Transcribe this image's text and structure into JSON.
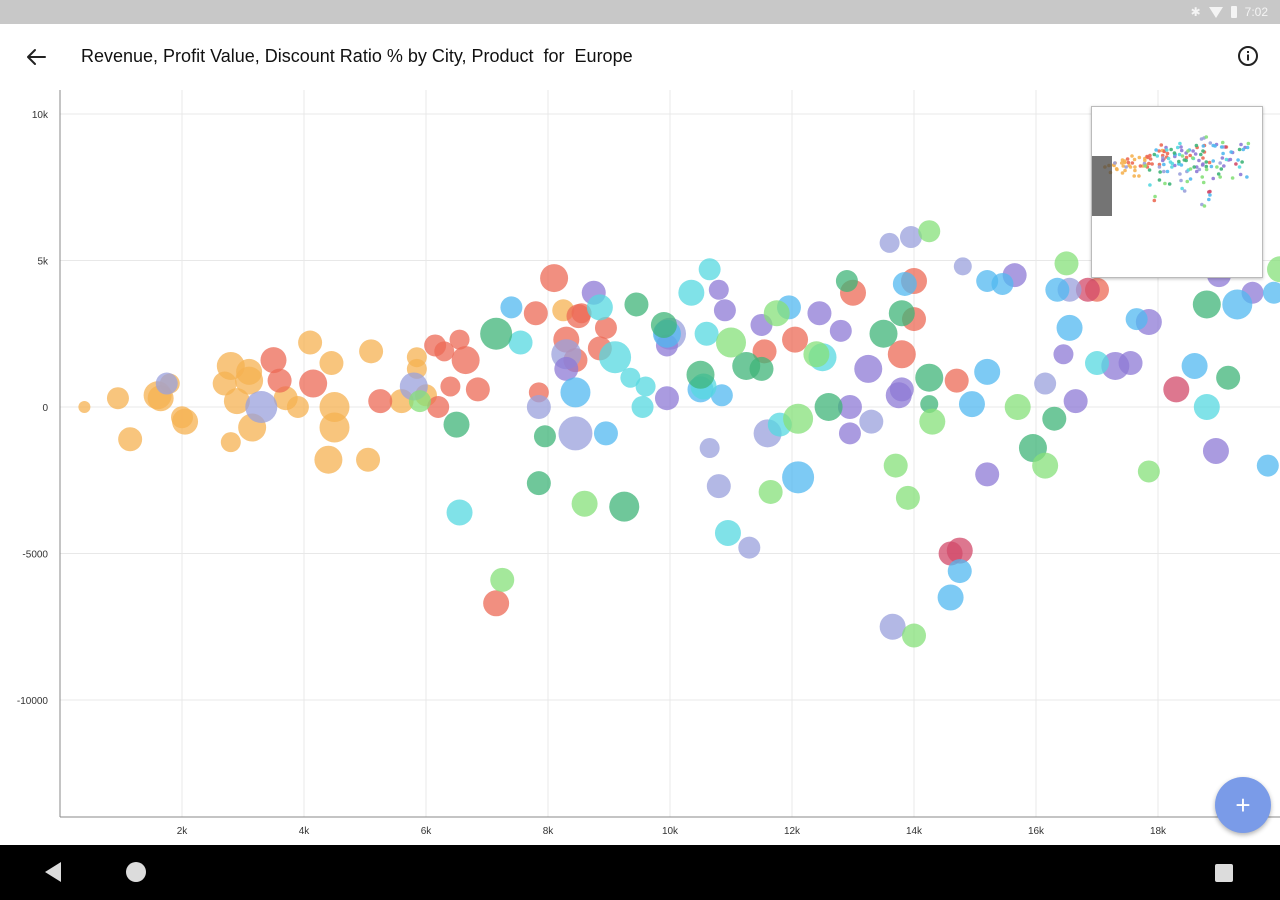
{
  "status_bar": {
    "time": "7:02",
    "icons": [
      "bluetooth-icon",
      "wifi-icon",
      "battery-icon"
    ]
  },
  "app_bar": {
    "title": "Revenue, Profit Value, Discount Ratio % by City, Product  for  Europe",
    "back_icon": "arrow-left-icon",
    "info_icon": "info-icon"
  },
  "fab": {
    "label": "+",
    "icon": "plus-icon",
    "color": "#7a9be8"
  },
  "nav_bar": {
    "icons": [
      "back-triangle-icon",
      "home-circle-icon",
      "recents-square-icon"
    ]
  },
  "colors": {
    "orange": "#f5b252",
    "red": "#ec6a55",
    "purple": "#8e7ad6",
    "blue": "#52b8f0",
    "cyan": "#55d8e0",
    "green": "#3fb478",
    "light_green": "#86e07a",
    "crimson": "#d24a6a",
    "lavender": "#9aa0dc",
    "grid": "#e8e8e8",
    "axis": "#888888"
  },
  "chart_data": {
    "type": "scatter",
    "subtype": "bubble",
    "x_ticks": [
      "2k",
      "4k",
      "6k",
      "8k",
      "10k",
      "12k",
      "14k",
      "16k",
      "18k"
    ],
    "y_ticks": [
      "10k",
      "5k",
      "0",
      "-5000",
      "-10000"
    ],
    "xlim": [
      0,
      19600
    ],
    "ylim": [
      -14000,
      10500
    ],
    "grid": true,
    "legend": "none",
    "points": [
      {
        "x": 400,
        "y": 0,
        "r": 6,
        "c": "orange"
      },
      {
        "x": 950,
        "y": 300,
        "r": 11,
        "c": "orange"
      },
      {
        "x": 1150,
        "y": -1100,
        "r": 12,
        "c": "orange"
      },
      {
        "x": 1600,
        "y": 400,
        "r": 14,
        "c": "orange"
      },
      {
        "x": 1650,
        "y": 300,
        "r": 13,
        "c": "orange"
      },
      {
        "x": 1800,
        "y": 800,
        "r": 10,
        "c": "orange"
      },
      {
        "x": 2050,
        "y": -500,
        "r": 13,
        "c": "orange"
      },
      {
        "x": 2000,
        "y": -350,
        "r": 11,
        "c": "orange"
      },
      {
        "x": 2700,
        "y": 800,
        "r": 12,
        "c": "orange"
      },
      {
        "x": 2800,
        "y": 1400,
        "r": 14,
        "c": "orange"
      },
      {
        "x": 2900,
        "y": 200,
        "r": 13,
        "c": "orange"
      },
      {
        "x": 2800,
        "y": -1200,
        "r": 10,
        "c": "orange"
      },
      {
        "x": 3100,
        "y": 900,
        "r": 14,
        "c": "orange"
      },
      {
        "x": 3100,
        "y": 1200,
        "r": 13,
        "c": "orange"
      },
      {
        "x": 3150,
        "y": -700,
        "r": 14,
        "c": "orange"
      },
      {
        "x": 3700,
        "y": 300,
        "r": 12,
        "c": "orange"
      },
      {
        "x": 3900,
        "y": 0,
        "r": 11,
        "c": "orange"
      },
      {
        "x": 4100,
        "y": 2200,
        "r": 12,
        "c": "orange"
      },
      {
        "x": 4450,
        "y": 1500,
        "r": 12,
        "c": "orange"
      },
      {
        "x": 4500,
        "y": 0,
        "r": 15,
        "c": "orange"
      },
      {
        "x": 4500,
        "y": -700,
        "r": 15,
        "c": "orange"
      },
      {
        "x": 4400,
        "y": -1800,
        "r": 14,
        "c": "orange"
      },
      {
        "x": 5100,
        "y": 1900,
        "r": 12,
        "c": "orange"
      },
      {
        "x": 5050,
        "y": -1800,
        "r": 12,
        "c": "orange"
      },
      {
        "x": 5600,
        "y": 200,
        "r": 12,
        "c": "orange"
      },
      {
        "x": 5850,
        "y": 1700,
        "r": 10,
        "c": "orange"
      },
      {
        "x": 5850,
        "y": 1300,
        "r": 10,
        "c": "orange"
      },
      {
        "x": 6000,
        "y": 400,
        "r": 11,
        "c": "orange"
      },
      {
        "x": 8250,
        "y": 3300,
        "r": 11,
        "c": "orange"
      },
      {
        "x": 3500,
        "y": 1600,
        "r": 13,
        "c": "red"
      },
      {
        "x": 3600,
        "y": 900,
        "r": 12,
        "c": "red"
      },
      {
        "x": 4150,
        "y": 800,
        "r": 14,
        "c": "red"
      },
      {
        "x": 5250,
        "y": 200,
        "r": 12,
        "c": "red"
      },
      {
        "x": 6150,
        "y": 2100,
        "r": 11,
        "c": "red"
      },
      {
        "x": 6300,
        "y": 1900,
        "r": 10,
        "c": "red"
      },
      {
        "x": 6550,
        "y": 2300,
        "r": 10,
        "c": "red"
      },
      {
        "x": 6650,
        "y": 1600,
        "r": 14,
        "c": "red"
      },
      {
        "x": 6400,
        "y": 700,
        "r": 10,
        "c": "red"
      },
      {
        "x": 6200,
        "y": 0,
        "r": 11,
        "c": "red"
      },
      {
        "x": 6850,
        "y": 600,
        "r": 12,
        "c": "red"
      },
      {
        "x": 7150,
        "y": -6700,
        "r": 13,
        "c": "red"
      },
      {
        "x": 7800,
        "y": 3200,
        "r": 12,
        "c": "red"
      },
      {
        "x": 8100,
        "y": 4400,
        "r": 14,
        "c": "red"
      },
      {
        "x": 8300,
        "y": 2300,
        "r": 13,
        "c": "red"
      },
      {
        "x": 8500,
        "y": 3100,
        "r": 12,
        "c": "red"
      },
      {
        "x": 8550,
        "y": 3200,
        "r": 10,
        "c": "red"
      },
      {
        "x": 8450,
        "y": 1600,
        "r": 12,
        "c": "red"
      },
      {
        "x": 8950,
        "y": 2700,
        "r": 11,
        "c": "red"
      },
      {
        "x": 8850,
        "y": 2000,
        "r": 12,
        "c": "red"
      },
      {
        "x": 7850,
        "y": 500,
        "r": 10,
        "c": "red"
      },
      {
        "x": 11550,
        "y": 1900,
        "r": 12,
        "c": "red"
      },
      {
        "x": 12050,
        "y": 2300,
        "r": 13,
        "c": "red"
      },
      {
        "x": 13000,
        "y": 3900,
        "r": 13,
        "c": "red"
      },
      {
        "x": 13800,
        "y": 1800,
        "r": 14,
        "c": "red"
      },
      {
        "x": 14000,
        "y": 3000,
        "r": 12,
        "c": "red"
      },
      {
        "x": 14000,
        "y": 4300,
        "r": 13,
        "c": "red"
      },
      {
        "x": 14700,
        "y": 900,
        "r": 12,
        "c": "red"
      },
      {
        "x": 17000,
        "y": 4000,
        "r": 12,
        "c": "red"
      },
      {
        "x": 14750,
        "y": -4900,
        "r": 13,
        "c": "crimson"
      },
      {
        "x": 14600,
        "y": -5000,
        "r": 12,
        "c": "crimson"
      },
      {
        "x": 16850,
        "y": 4000,
        "r": 12,
        "c": "crimson"
      },
      {
        "x": 18300,
        "y": 600,
        "r": 13,
        "c": "crimson"
      },
      {
        "x": 1750,
        "y": 800,
        "r": 11,
        "c": "lavender"
      },
      {
        "x": 3300,
        "y": 0,
        "r": 16,
        "c": "lavender"
      },
      {
        "x": 5800,
        "y": 700,
        "r": 14,
        "c": "lavender"
      },
      {
        "x": 7850,
        "y": 0,
        "r": 12,
        "c": "lavender"
      },
      {
        "x": 8300,
        "y": 1800,
        "r": 15,
        "c": "lavender"
      },
      {
        "x": 8450,
        "y": -900,
        "r": 17,
        "c": "lavender"
      },
      {
        "x": 10000,
        "y": 2500,
        "r": 16,
        "c": "lavender"
      },
      {
        "x": 10650,
        "y": -1400,
        "r": 10,
        "c": "lavender"
      },
      {
        "x": 10800,
        "y": -2700,
        "r": 12,
        "c": "lavender"
      },
      {
        "x": 11300,
        "y": -4800,
        "r": 11,
        "c": "lavender"
      },
      {
        "x": 11600,
        "y": -900,
        "r": 14,
        "c": "lavender"
      },
      {
        "x": 13300,
        "y": -500,
        "r": 12,
        "c": "lavender"
      },
      {
        "x": 13600,
        "y": 5600,
        "r": 10,
        "c": "lavender"
      },
      {
        "x": 13950,
        "y": 5800,
        "r": 11,
        "c": "lavender"
      },
      {
        "x": 13650,
        "y": -7500,
        "r": 13,
        "c": "lavender"
      },
      {
        "x": 14800,
        "y": 4800,
        "r": 9,
        "c": "lavender"
      },
      {
        "x": 16150,
        "y": 800,
        "r": 11,
        "c": "lavender"
      },
      {
        "x": 16550,
        "y": 4000,
        "r": 12,
        "c": "lavender"
      },
      {
        "x": 8750,
        "y": 3900,
        "r": 12,
        "c": "purple"
      },
      {
        "x": 8300,
        "y": 1300,
        "r": 12,
        "c": "purple"
      },
      {
        "x": 9950,
        "y": 2100,
        "r": 11,
        "c": "purple"
      },
      {
        "x": 9950,
        "y": 300,
        "r": 12,
        "c": "purple"
      },
      {
        "x": 10800,
        "y": 4000,
        "r": 10,
        "c": "purple"
      },
      {
        "x": 10900,
        "y": 3300,
        "r": 11,
        "c": "purple"
      },
      {
        "x": 11500,
        "y": 2800,
        "r": 11,
        "c": "purple"
      },
      {
        "x": 12450,
        "y": 3200,
        "r": 12,
        "c": "purple"
      },
      {
        "x": 12800,
        "y": 2600,
        "r": 11,
        "c": "purple"
      },
      {
        "x": 12950,
        "y": 0,
        "r": 12,
        "c": "purple"
      },
      {
        "x": 12950,
        "y": -900,
        "r": 11,
        "c": "purple"
      },
      {
        "x": 13250,
        "y": 1300,
        "r": 14,
        "c": "purple"
      },
      {
        "x": 13750,
        "y": 400,
        "r": 13,
        "c": "purple"
      },
      {
        "x": 13800,
        "y": 600,
        "r": 12,
        "c": "purple"
      },
      {
        "x": 15200,
        "y": -2300,
        "r": 12,
        "c": "purple"
      },
      {
        "x": 15650,
        "y": 4500,
        "r": 12,
        "c": "purple"
      },
      {
        "x": 16450,
        "y": 1800,
        "r": 10,
        "c": "purple"
      },
      {
        "x": 16650,
        "y": 200,
        "r": 12,
        "c": "purple"
      },
      {
        "x": 17550,
        "y": 1500,
        "r": 12,
        "c": "purple"
      },
      {
        "x": 17300,
        "y": 1400,
        "r": 14,
        "c": "purple"
      },
      {
        "x": 17850,
        "y": 2900,
        "r": 13,
        "c": "purple"
      },
      {
        "x": 18950,
        "y": -1500,
        "r": 13,
        "c": "purple"
      },
      {
        "x": 19000,
        "y": 4500,
        "r": 12,
        "c": "purple"
      },
      {
        "x": 19550,
        "y": 3900,
        "r": 11,
        "c": "purple"
      },
      {
        "x": 7400,
        "y": 3400,
        "r": 11,
        "c": "blue"
      },
      {
        "x": 8450,
        "y": 500,
        "r": 15,
        "c": "blue"
      },
      {
        "x": 8950,
        "y": -900,
        "r": 12,
        "c": "blue"
      },
      {
        "x": 9950,
        "y": 2500,
        "r": 14,
        "c": "blue"
      },
      {
        "x": 10500,
        "y": 600,
        "r": 13,
        "c": "blue"
      },
      {
        "x": 10850,
        "y": 400,
        "r": 11,
        "c": "blue"
      },
      {
        "x": 11950,
        "y": 3400,
        "r": 12,
        "c": "blue"
      },
      {
        "x": 12100,
        "y": -2400,
        "r": 16,
        "c": "blue"
      },
      {
        "x": 13850,
        "y": 4200,
        "r": 12,
        "c": "blue"
      },
      {
        "x": 14600,
        "y": -6500,
        "r": 13,
        "c": "blue"
      },
      {
        "x": 14750,
        "y": -5600,
        "r": 12,
        "c": "blue"
      },
      {
        "x": 14950,
        "y": 100,
        "r": 13,
        "c": "blue"
      },
      {
        "x": 15200,
        "y": 4300,
        "r": 11,
        "c": "blue"
      },
      {
        "x": 15200,
        "y": 1200,
        "r": 13,
        "c": "blue"
      },
      {
        "x": 15450,
        "y": 4200,
        "r": 11,
        "c": "blue"
      },
      {
        "x": 16350,
        "y": 4000,
        "r": 12,
        "c": "blue"
      },
      {
        "x": 16550,
        "y": 2700,
        "r": 13,
        "c": "blue"
      },
      {
        "x": 17650,
        "y": 3000,
        "r": 11,
        "c": "blue"
      },
      {
        "x": 18600,
        "y": 1400,
        "r": 13,
        "c": "blue"
      },
      {
        "x": 19300,
        "y": 3500,
        "r": 15,
        "c": "blue"
      },
      {
        "x": 19800,
        "y": -2000,
        "r": 11,
        "c": "blue"
      },
      {
        "x": 19900,
        "y": 3900,
        "r": 11,
        "c": "blue"
      },
      {
        "x": 6550,
        "y": -3600,
        "r": 13,
        "c": "cyan"
      },
      {
        "x": 7550,
        "y": 2200,
        "r": 12,
        "c": "cyan"
      },
      {
        "x": 8850,
        "y": 3400,
        "r": 13,
        "c": "cyan"
      },
      {
        "x": 9100,
        "y": 1700,
        "r": 16,
        "c": "cyan"
      },
      {
        "x": 9350,
        "y": 1000,
        "r": 10,
        "c": "cyan"
      },
      {
        "x": 9550,
        "y": 0,
        "r": 11,
        "c": "cyan"
      },
      {
        "x": 9600,
        "y": 700,
        "r": 10,
        "c": "cyan"
      },
      {
        "x": 10350,
        "y": 3900,
        "r": 13,
        "c": "cyan"
      },
      {
        "x": 10650,
        "y": 4700,
        "r": 11,
        "c": "cyan"
      },
      {
        "x": 10600,
        "y": 2500,
        "r": 12,
        "c": "cyan"
      },
      {
        "x": 10550,
        "y": 700,
        "r": 13,
        "c": "cyan"
      },
      {
        "x": 10950,
        "y": -4300,
        "r": 13,
        "c": "cyan"
      },
      {
        "x": 11800,
        "y": -600,
        "r": 12,
        "c": "cyan"
      },
      {
        "x": 12500,
        "y": 1700,
        "r": 14,
        "c": "cyan"
      },
      {
        "x": 17000,
        "y": 1500,
        "r": 12,
        "c": "cyan"
      },
      {
        "x": 18800,
        "y": 0,
        "r": 13,
        "c": "cyan"
      },
      {
        "x": 7150,
        "y": 2500,
        "r": 16,
        "c": "green"
      },
      {
        "x": 6500,
        "y": -600,
        "r": 13,
        "c": "green"
      },
      {
        "x": 7950,
        "y": -1000,
        "r": 11,
        "c": "green"
      },
      {
        "x": 7850,
        "y": -2600,
        "r": 12,
        "c": "green"
      },
      {
        "x": 9250,
        "y": -3400,
        "r": 15,
        "c": "green"
      },
      {
        "x": 9450,
        "y": 3500,
        "r": 12,
        "c": "green"
      },
      {
        "x": 9900,
        "y": 2800,
        "r": 13,
        "c": "green"
      },
      {
        "x": 10500,
        "y": 1100,
        "r": 14,
        "c": "green"
      },
      {
        "x": 11250,
        "y": 1400,
        "r": 14,
        "c": "green"
      },
      {
        "x": 11500,
        "y": 1300,
        "r": 12,
        "c": "green"
      },
      {
        "x": 12600,
        "y": 0,
        "r": 14,
        "c": "green"
      },
      {
        "x": 12900,
        "y": 4300,
        "r": 11,
        "c": "green"
      },
      {
        "x": 13500,
        "y": 2500,
        "r": 14,
        "c": "green"
      },
      {
        "x": 13800,
        "y": 3200,
        "r": 13,
        "c": "green"
      },
      {
        "x": 14250,
        "y": 1000,
        "r": 14,
        "c": "green"
      },
      {
        "x": 14250,
        "y": 100,
        "r": 9,
        "c": "green"
      },
      {
        "x": 15950,
        "y": -1400,
        "r": 14,
        "c": "green"
      },
      {
        "x": 16300,
        "y": -400,
        "r": 12,
        "c": "green"
      },
      {
        "x": 18800,
        "y": 3500,
        "r": 14,
        "c": "green"
      },
      {
        "x": 19150,
        "y": 1000,
        "r": 12,
        "c": "green"
      },
      {
        "x": 5900,
        "y": 200,
        "r": 11,
        "c": "light_green"
      },
      {
        "x": 7250,
        "y": -5900,
        "r": 12,
        "c": "light_green"
      },
      {
        "x": 8600,
        "y": -3300,
        "r": 13,
        "c": "light_green"
      },
      {
        "x": 11000,
        "y": 2200,
        "r": 15,
        "c": "light_green"
      },
      {
        "x": 11650,
        "y": -2900,
        "r": 12,
        "c": "light_green"
      },
      {
        "x": 11750,
        "y": 3200,
        "r": 13,
        "c": "light_green"
      },
      {
        "x": 12100,
        "y": -400,
        "r": 15,
        "c": "light_green"
      },
      {
        "x": 12400,
        "y": 1800,
        "r": 13,
        "c": "light_green"
      },
      {
        "x": 13700,
        "y": -2000,
        "r": 12,
        "c": "light_green"
      },
      {
        "x": 13900,
        "y": -3100,
        "r": 12,
        "c": "light_green"
      },
      {
        "x": 14250,
        "y": 6000,
        "r": 11,
        "c": "light_green"
      },
      {
        "x": 14000,
        "y": -7800,
        "r": 12,
        "c": "light_green"
      },
      {
        "x": 14300,
        "y": -500,
        "r": 13,
        "c": "light_green"
      },
      {
        "x": 15700,
        "y": 0,
        "r": 13,
        "c": "light_green"
      },
      {
        "x": 16150,
        "y": -2000,
        "r": 13,
        "c": "light_green"
      },
      {
        "x": 16500,
        "y": 4900,
        "r": 12,
        "c": "light_green"
      },
      {
        "x": 17850,
        "y": -2200,
        "r": 11,
        "c": "light_green"
      },
      {
        "x": 20000,
        "y": 4700,
        "r": 13,
        "c": "light_green"
      }
    ]
  }
}
